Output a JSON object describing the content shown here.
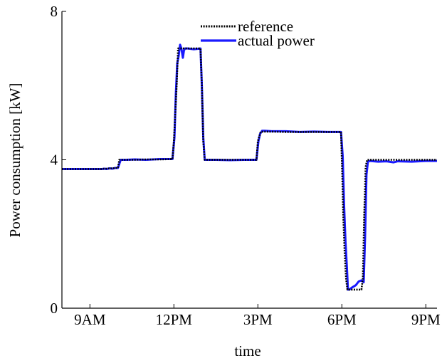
{
  "chart_data": {
    "type": "line",
    "xlabel": "time",
    "ylabel": "Power consumption [kW]",
    "x_unit": "hours (clock time)",
    "xlim": [
      8.0,
      21.4
    ],
    "ylim": [
      0,
      8
    ],
    "x_ticks": [
      {
        "value": 9,
        "label": "9AM"
      },
      {
        "value": 12,
        "label": "12PM"
      },
      {
        "value": 15,
        "label": "3PM"
      },
      {
        "value": 18,
        "label": "6PM"
      },
      {
        "value": 21,
        "label": "9PM"
      }
    ],
    "y_ticks": [
      {
        "value": 0,
        "label": "0"
      },
      {
        "value": 4,
        "label": "4"
      },
      {
        "value": 8,
        "label": "8"
      }
    ],
    "grid": false,
    "legend_position": "top-center",
    "series": [
      {
        "name": "reference",
        "color": "#000000",
        "style": "dotted",
        "x": [
          8.0,
          9.45,
          9.5,
          9.6,
          9.7,
          9.8,
          9.9,
          10.0,
          10.05,
          10.3,
          10.6,
          11.0,
          11.5,
          11.95,
          12.0,
          12.1,
          12.15,
          12.2,
          12.35,
          12.5,
          12.7,
          12.95,
          13.0,
          13.05,
          13.1,
          13.2,
          13.5,
          14.0,
          14.5,
          14.95,
          15.0,
          15.1,
          15.2,
          15.3,
          15.5,
          16.0,
          16.5,
          17.0,
          17.5,
          17.97,
          18.0,
          18.05,
          18.1,
          18.15,
          18.2,
          18.25,
          18.7,
          18.75,
          18.8,
          18.85,
          18.9,
          19.0,
          19.5,
          20.0,
          20.5,
          21.0,
          21.4
        ],
        "y": [
          3.75,
          3.75,
          3.76,
          3.76,
          3.77,
          3.77,
          3.78,
          3.78,
          4.0,
          4.0,
          4.0,
          4.01,
          4.01,
          4.02,
          4.5,
          6.0,
          7.0,
          7.0,
          7.0,
          7.0,
          7.0,
          7.0,
          6.0,
          4.5,
          4.0,
          4.0,
          4.0,
          4.0,
          4.0,
          4.0,
          4.5,
          4.75,
          4.76,
          4.76,
          4.76,
          4.75,
          4.75,
          4.75,
          4.75,
          4.75,
          4.0,
          2.5,
          1.5,
          0.8,
          0.5,
          0.5,
          0.5,
          0.8,
          2.5,
          3.8,
          4.0,
          4.0,
          4.0,
          4.0,
          4.0,
          4.0,
          4.0
        ]
      },
      {
        "name": "actual power",
        "color": "#1a1aff",
        "style": "solid",
        "x": [
          8.0,
          9.45,
          9.5,
          9.6,
          9.7,
          9.8,
          9.9,
          10.0,
          10.1,
          10.3,
          10.6,
          11.0,
          11.5,
          11.95,
          12.02,
          12.07,
          12.12,
          12.17,
          12.22,
          12.27,
          12.32,
          12.36,
          12.4,
          12.5,
          12.7,
          12.95,
          13.0,
          13.05,
          13.1,
          13.2,
          13.5,
          14.0,
          14.5,
          14.95,
          15.02,
          15.08,
          15.15,
          15.25,
          15.5,
          16.0,
          16.5,
          17.0,
          17.5,
          17.97,
          18.03,
          18.08,
          18.13,
          18.18,
          18.22,
          18.27,
          18.35,
          18.5,
          18.6,
          18.7,
          18.78,
          18.83,
          18.88,
          18.93,
          19.0,
          19.3,
          19.6,
          19.85,
          20.0,
          20.5,
          21.0,
          21.4
        ],
        "y": [
          3.75,
          3.75,
          3.76,
          3.75,
          3.77,
          3.76,
          3.78,
          3.78,
          4.0,
          4.0,
          4.01,
          4.0,
          4.02,
          4.02,
          4.6,
          5.8,
          6.6,
          6.8,
          7.1,
          7.0,
          6.75,
          6.95,
          7.0,
          7.0,
          6.98,
          7.0,
          6.0,
          4.6,
          4.0,
          4.0,
          4.0,
          3.99,
          4.0,
          4.0,
          4.5,
          4.7,
          4.78,
          4.78,
          4.77,
          4.77,
          4.75,
          4.76,
          4.75,
          4.75,
          4.1,
          2.8,
          1.8,
          1.1,
          0.5,
          0.5,
          0.55,
          0.62,
          0.72,
          0.75,
          0.7,
          1.9,
          3.6,
          3.95,
          3.97,
          3.95,
          3.96,
          3.93,
          3.96,
          3.95,
          3.97,
          3.97
        ]
      }
    ]
  }
}
